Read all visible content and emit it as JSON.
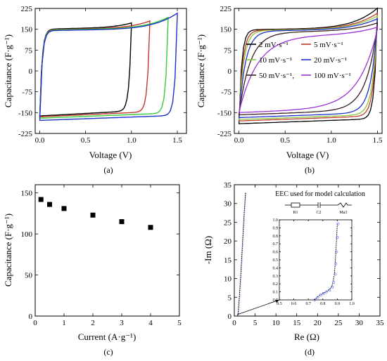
{
  "chart_data": [
    {
      "panel_label": "(a)",
      "type": "line",
      "xlabel": "Voltage (V)",
      "ylabel": "Capacitance (F·g⁻¹)",
      "xlim": [
        -0.05,
        1.6
      ],
      "ylim": [
        -225,
        225
      ],
      "xticks": [
        0.0,
        0.5,
        1.0,
        1.5
      ],
      "yticks": [
        -225,
        -150,
        -75,
        0,
        75,
        150,
        225
      ],
      "series": [
        {
          "color": "#000000",
          "vmax": 1.0,
          "upper": 150,
          "upper_end": 165,
          "lower": -162
        },
        {
          "color": "#c0392b",
          "vmax": 1.2,
          "upper": 148,
          "upper_end": 172,
          "lower": -165
        },
        {
          "color": "#33cc33",
          "vmax": 1.4,
          "upper": 147,
          "upper_end": 185,
          "lower": -170
        },
        {
          "color": "#1f2fcc",
          "vmax": 1.5,
          "upper": 145,
          "upper_end": 200,
          "lower": -178
        }
      ]
    },
    {
      "panel_label": "(b)",
      "type": "line",
      "xlabel": "Voltage (V)",
      "ylabel": "Capacitance (F·g⁻¹)",
      "xlim": [
        -0.05,
        1.55
      ],
      "ylim": [
        -225,
        225
      ],
      "xticks": [
        0.0,
        0.5,
        1.0,
        1.5
      ],
      "yticks": [
        -225,
        -150,
        -75,
        0,
        75,
        150,
        225
      ],
      "legend": [
        "2 mV·s⁻¹",
        "5 mV·s⁻¹",
        "10 mV·s⁻¹",
        "20 mV·s⁻¹",
        "50 mV·s⁻¹",
        "100 mV·s⁻¹"
      ],
      "series": [
        {
          "name": "2 mV·s⁻¹",
          "color": "#000000",
          "upper": 148,
          "upper_end": 218,
          "lower": -190,
          "r": 0.03
        },
        {
          "name": "5 mV·s⁻¹",
          "color": "#c0392b",
          "upper": 146,
          "upper_end": 200,
          "lower": -180,
          "r": 0.04
        },
        {
          "name": "10 mV·s⁻¹",
          "color": "#8dc63f",
          "upper": 145,
          "upper_end": 190,
          "lower": -175,
          "r": 0.05
        },
        {
          "name": "20 mV·s⁻¹",
          "color": "#1f2fcc",
          "upper": 143,
          "upper_end": 180,
          "lower": -168,
          "r": 0.07
        },
        {
          "name": "50 mV·s⁻¹",
          "color": "#3b1f1f",
          "upper": 138,
          "upper_end": 165,
          "lower": -158,
          "r": 0.12
        },
        {
          "name": "100 mV·s⁻¹",
          "color": "#9b30d9",
          "upper": 125,
          "upper_end": 150,
          "lower": -150,
          "r": 0.2
        }
      ]
    },
    {
      "panel_label": "(c)",
      "type": "scatter",
      "xlabel": "Current (A·g⁻¹)",
      "ylabel": "Capacitance (F·g⁻¹)",
      "xlim": [
        0,
        5
      ],
      "ylim": [
        0,
        160
      ],
      "xticks": [
        0,
        1,
        2,
        3,
        4,
        5
      ],
      "yticks": [
        0,
        50,
        100,
        150
      ],
      "x": [
        0.2,
        0.5,
        1,
        2,
        3,
        4
      ],
      "y": [
        142,
        136,
        131,
        123,
        115,
        108
      ]
    },
    {
      "panel_label": "(d)",
      "type": "line",
      "xlabel": "Re (Ω)",
      "ylabel": "-Im (Ω)",
      "xlim": [
        0,
        35
      ],
      "ylim": [
        0,
        35
      ],
      "xticks": [
        0,
        5,
        10,
        15,
        20,
        25,
        30,
        35
      ],
      "yticks": [
        0,
        5,
        10,
        15,
        20,
        25,
        30,
        35
      ],
      "annotation": "EEC used for model calculation",
      "circuit_labels": [
        "R1",
        "C2",
        "Ma3"
      ],
      "inset": {
        "xlim": [
          0.5,
          1.0
        ],
        "ylim": [
          0,
          1.0
        ],
        "xticks": [
          0.5,
          0.6,
          0.7,
          0.8,
          0.9,
          1.0
        ],
        "yticks": [
          0.0,
          0.1,
          0.2,
          0.3,
          0.4,
          0.5,
          0.6,
          0.7,
          0.8,
          0.9,
          1.0
        ],
        "x": [
          0.74,
          0.76,
          0.78,
          0.8,
          0.82,
          0.84,
          0.86,
          0.87,
          0.88,
          0.885,
          0.89,
          0.895,
          0.9
        ],
        "y": [
          0.0,
          0.03,
          0.06,
          0.08,
          0.1,
          0.12,
          0.16,
          0.22,
          0.32,
          0.45,
          0.6,
          0.78,
          0.95
        ]
      },
      "x": [
        0.74,
        0.8,
        0.85,
        0.9,
        1.2,
        1.6,
        2.0,
        2.4,
        2.7
      ],
      "y": [
        0.0,
        0.1,
        0.15,
        0.5,
        5.0,
        12.0,
        20.0,
        28.0,
        33.0
      ]
    }
  ]
}
